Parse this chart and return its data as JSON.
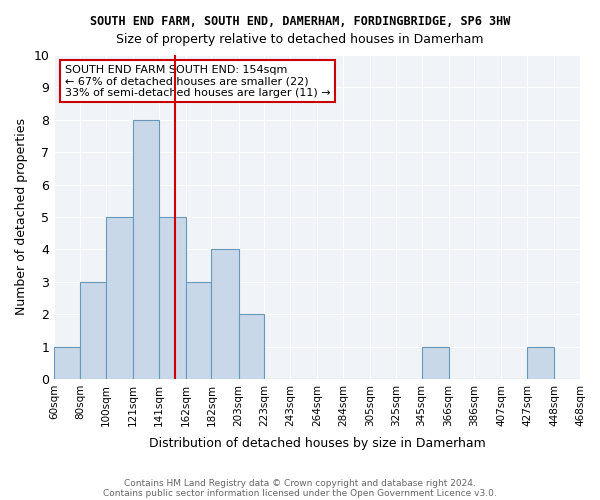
{
  "title1": "SOUTH END FARM, SOUTH END, DAMERHAM, FORDINGBRIDGE, SP6 3HW",
  "title2": "Size of property relative to detached houses in Damerham",
  "xlabel": "Distribution of detached houses by size in Damerham",
  "ylabel": "Number of detached properties",
  "bins": [
    60,
    80,
    100,
    121,
    141,
    162,
    182,
    203,
    223,
    243,
    264,
    284,
    305,
    325,
    345,
    366,
    386,
    407,
    427,
    448,
    468
  ],
  "bin_labels": [
    "60sqm",
    "80sqm",
    "100sqm",
    "121sqm",
    "141sqm",
    "162sqm",
    "182sqm",
    "203sqm",
    "223sqm",
    "243sqm",
    "264sqm",
    "284sqm",
    "305sqm",
    "325sqm",
    "345sqm",
    "366sqm",
    "386sqm",
    "407sqm",
    "427sqm",
    "448sqm",
    "468sqm"
  ],
  "counts": [
    1,
    3,
    5,
    8,
    5,
    3,
    4,
    2,
    0,
    0,
    0,
    0,
    0,
    0,
    1,
    0,
    0,
    0,
    1,
    0
  ],
  "bar_color": "#c8d8e8",
  "bar_edge_color": "#6699bb",
  "reference_line_x": 154,
  "reference_line_color": "#cc0000",
  "ylim": [
    0,
    10
  ],
  "yticks": [
    0,
    1,
    2,
    3,
    4,
    5,
    6,
    7,
    8,
    9,
    10
  ],
  "annotation_text": "SOUTH END FARM SOUTH END: 154sqm\n← 67% of detached houses are smaller (22)\n33% of semi-detached houses are larger (11) →",
  "annotation_box_color": "#ffffff",
  "annotation_box_edge": "#cc0000",
  "footer1": "Contains HM Land Registry data © Crown copyright and database right 2024.",
  "footer2": "Contains public sector information licensed under the Open Government Licence v3.0.",
  "bg_color": "#f0f4f8"
}
